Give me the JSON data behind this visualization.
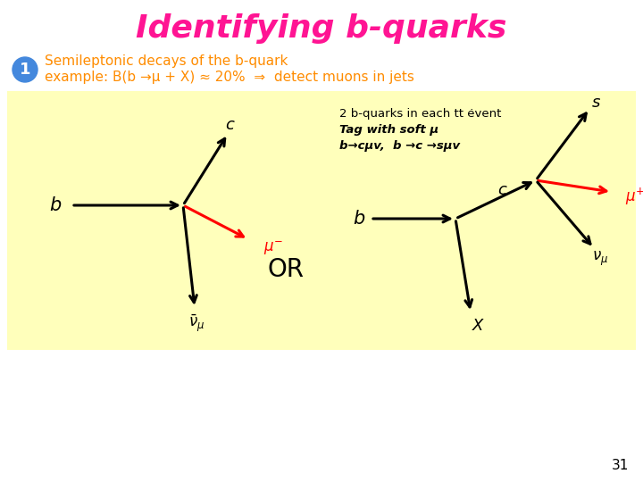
{
  "title": "Identifying b-quarks",
  "title_color": "#FF1493",
  "title_fontsize": 26,
  "bullet_bg": "#4488DD",
  "bullet_text_color": "#FF8C00",
  "bullet_line1": "Semileptonic decays of the b-quark",
  "bullet_line2": "example: B(b →μ + X) ≈ 20%  ⇒  detect muons in jets",
  "panel_bg": "#FFFFBB",
  "annotation_line1": "2 b-quarks in each tt ėvent",
  "annotation_line2": "Tag with soft μ",
  "annotation_line3": "b→cμv,  b →c →sμv",
  "or_text": "OR",
  "page_number": "31",
  "bg_color": "#FFFFFF"
}
